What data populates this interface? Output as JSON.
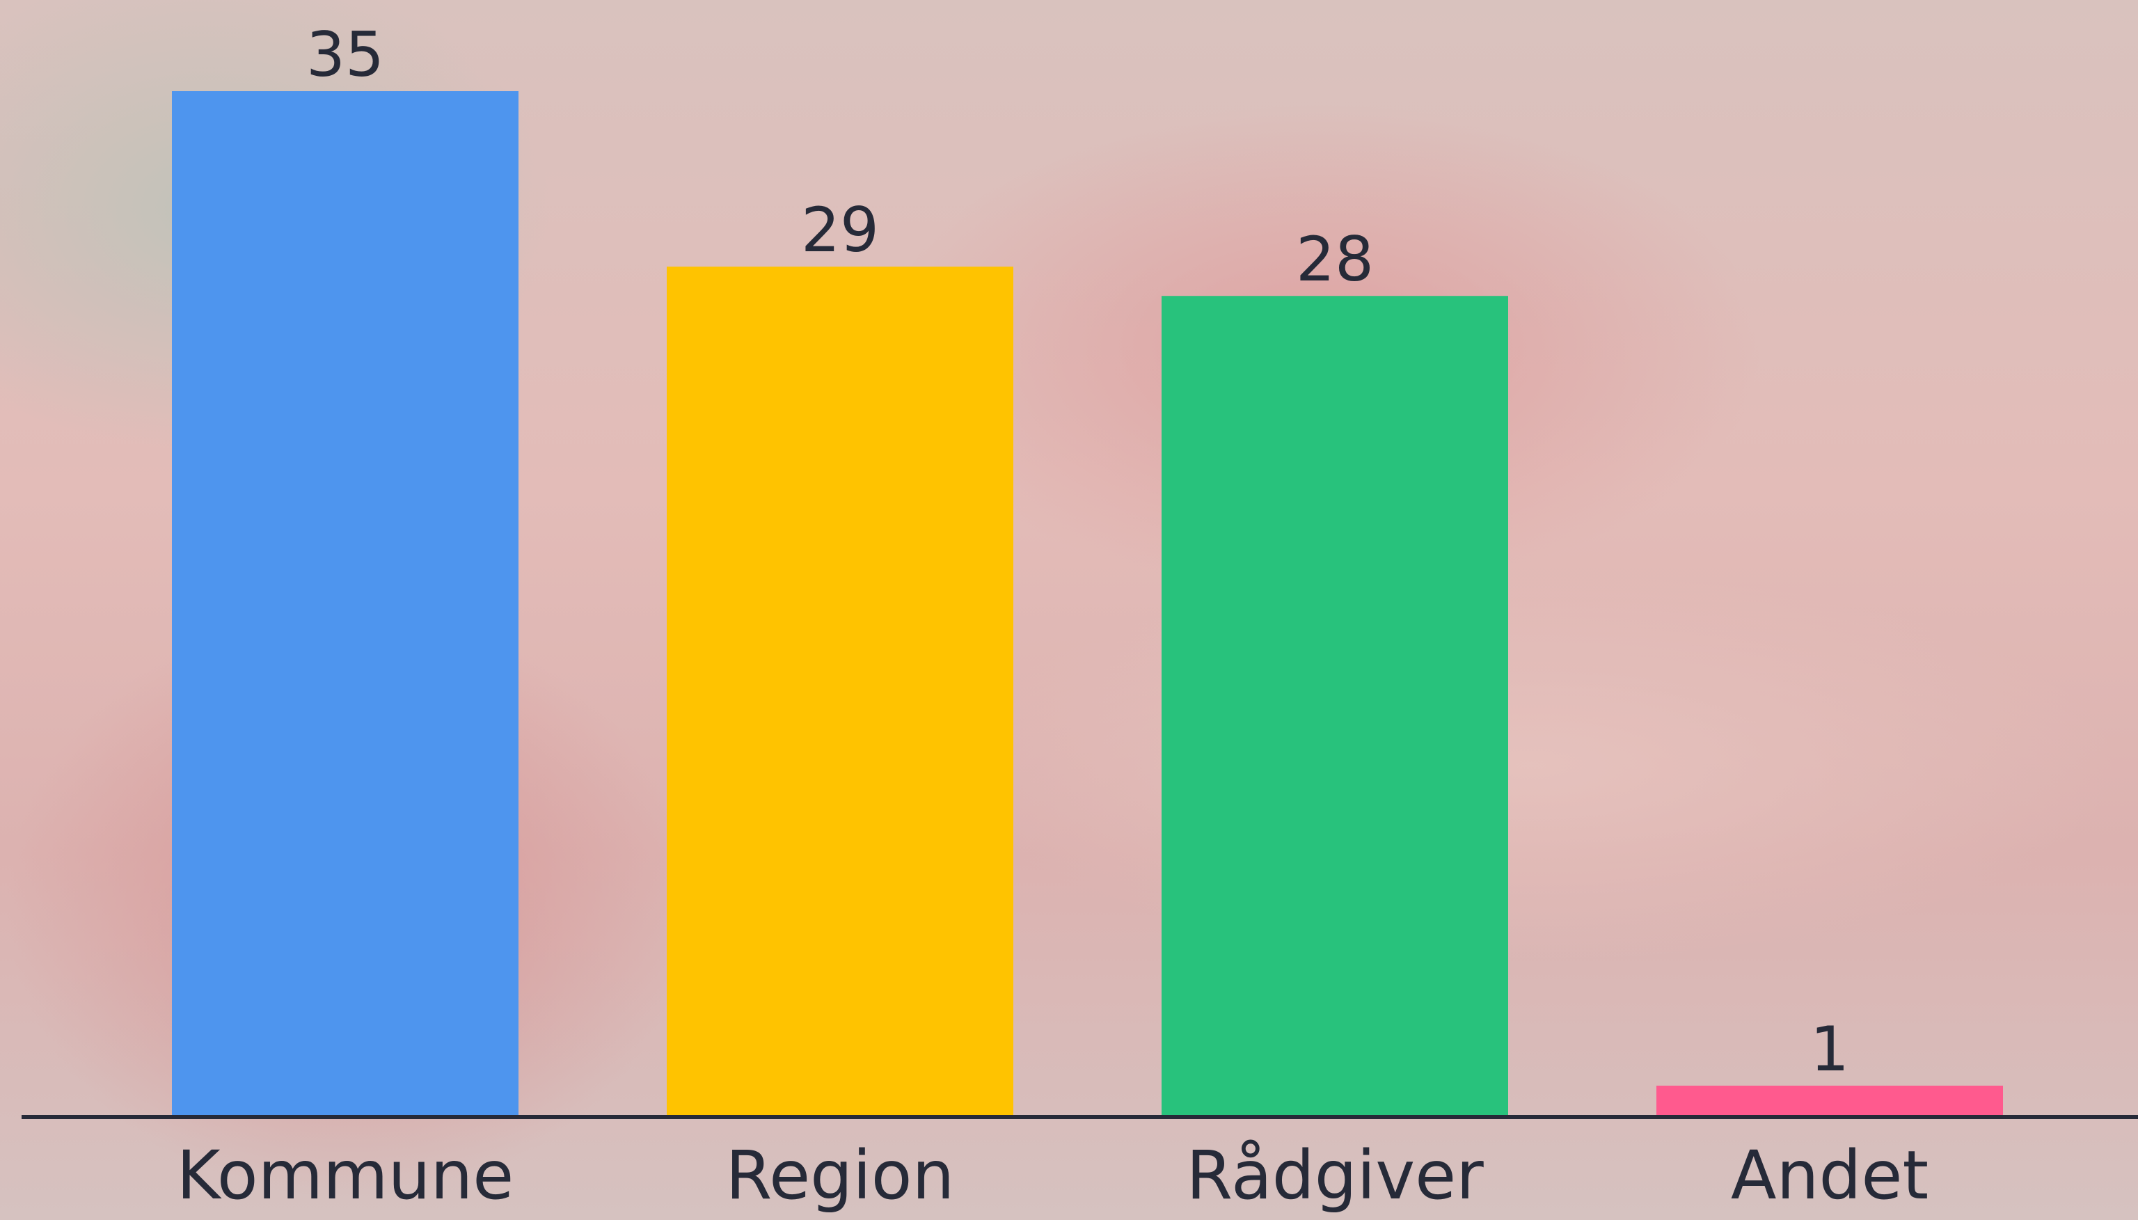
{
  "chart_data": {
    "type": "bar",
    "categories": [
      "Kommune",
      "Region",
      "Rådgiver",
      "Andet"
    ],
    "values": [
      35,
      29,
      28,
      1
    ],
    "colors": [
      "#4e95ee",
      "#ffc300",
      "#28c27c",
      "#ff5a8e"
    ]
  }
}
